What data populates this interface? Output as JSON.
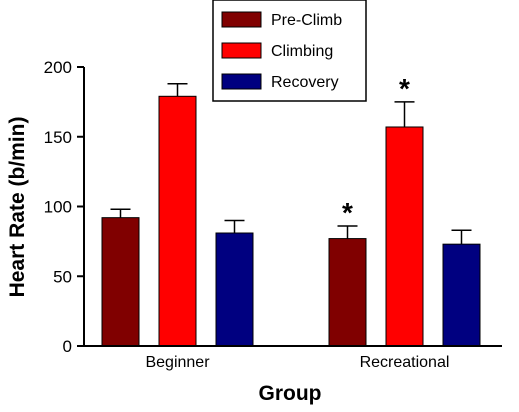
{
  "chart_data": {
    "type": "bar",
    "categories": [
      "Beginner",
      "Recreational"
    ],
    "series": [
      {
        "name": "Pre-Climb",
        "color": "#800000",
        "values": [
          92,
          77
        ],
        "errors": [
          6,
          9
        ],
        "significant": [
          false,
          true
        ]
      },
      {
        "name": "Climbing",
        "color": "#ff0000",
        "values": [
          179,
          157
        ],
        "errors": [
          9,
          18
        ],
        "significant": [
          false,
          true
        ]
      },
      {
        "name": "Recovery",
        "color": "#000080",
        "values": [
          81,
          73
        ],
        "errors": [
          9,
          10
        ],
        "significant": [
          false,
          false
        ]
      }
    ],
    "significance_marker": "*",
    "xlabel": "Group",
    "ylabel": "Heart Rate (b/min)",
    "ylim": [
      0,
      200
    ],
    "yticks": [
      0,
      50,
      100,
      150,
      200
    ],
    "legend_position": "top-center",
    "grid": false
  }
}
